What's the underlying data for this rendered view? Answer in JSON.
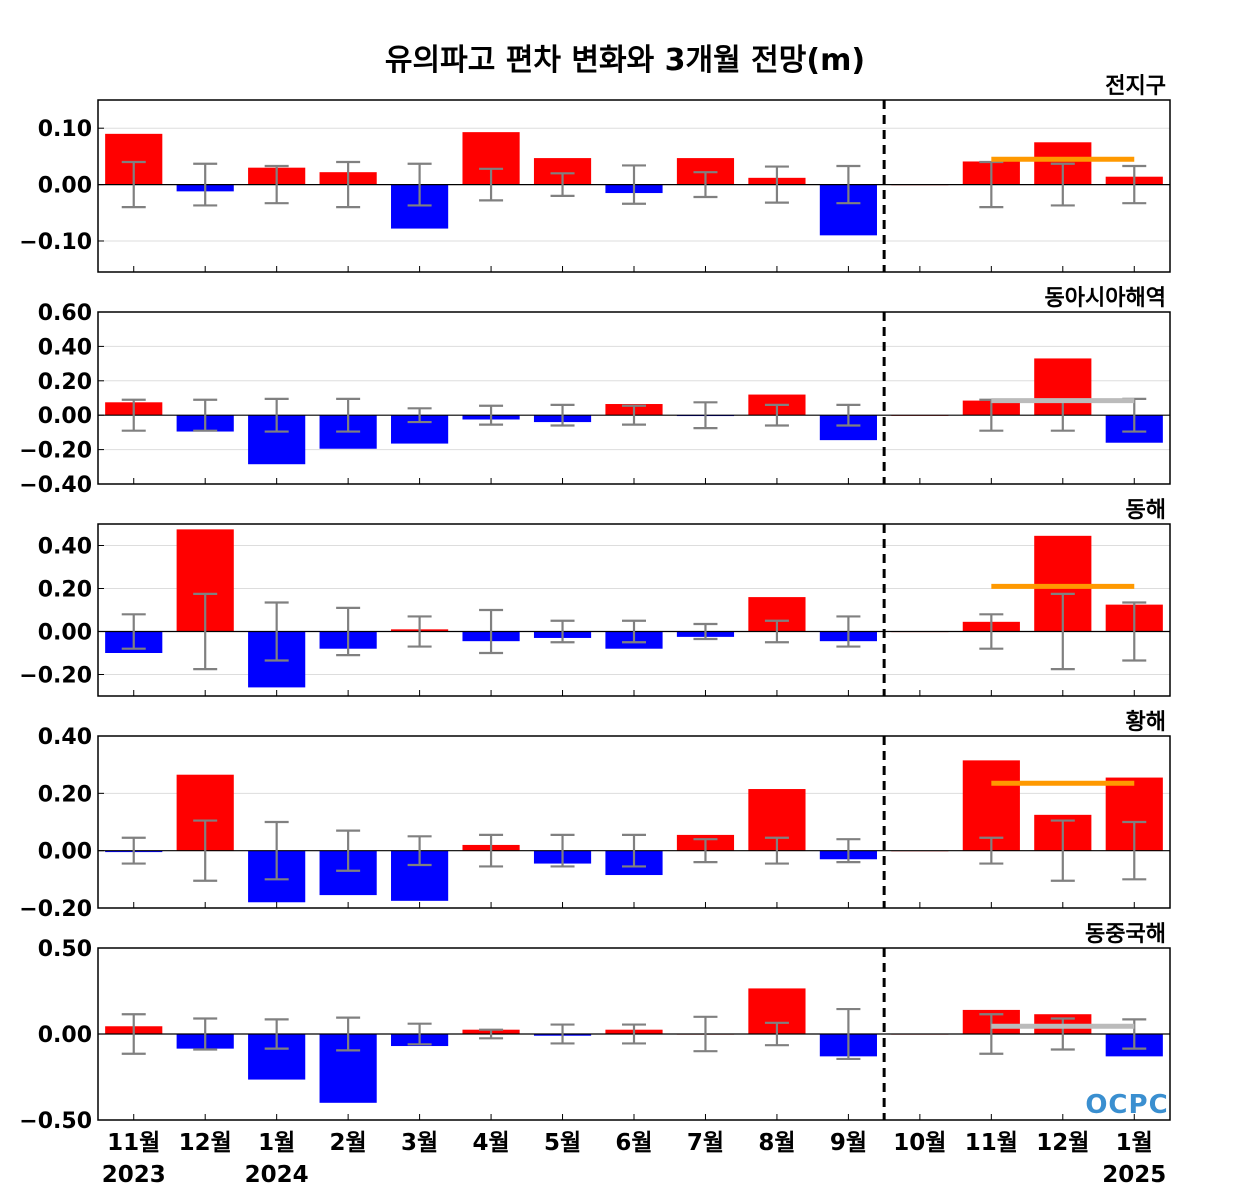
{
  "chart_data": {
    "type": "bar",
    "title": "유의파고 편차 변화와 3개월 전망(m)",
    "categories": [
      "11월",
      "12월",
      "1월",
      "2월",
      "3월",
      "4월",
      "5월",
      "6월",
      "7월",
      "8월",
      "9월",
      "10월",
      "11월",
      "12월",
      "1월"
    ],
    "year_labels": [
      {
        "index": 0,
        "label": "2023"
      },
      {
        "index": 2,
        "label": "2024"
      },
      {
        "index": 14,
        "label": "2025"
      }
    ],
    "forecast_divider_after_index": 10.5,
    "colors": {
      "positive": "#ff0000",
      "negative": "#0000ff",
      "errorbar": "#808080",
      "outlook_orange": "#ff9900",
      "outlook_gray": "#bbbbbb"
    },
    "logo": "OCPC",
    "panels": [
      {
        "name": "전지구",
        "ylim": [
          -0.155,
          0.15
        ],
        "yticks": [
          -0.1,
          0.0,
          0.1
        ],
        "ytick_labels": [
          "−0.10",
          "0.00",
          "0.10"
        ],
        "values": [
          0.09,
          -0.012,
          0.03,
          0.022,
          -0.078,
          0.093,
          0.047,
          -0.015,
          0.047,
          0.012,
          -0.09,
          0.0,
          0.041,
          0.075,
          0.014
        ],
        "error": [
          0.04,
          0.037,
          0.033,
          0.04,
          0.037,
          0.028,
          0.02,
          0.034,
          0.022,
          0.032,
          0.033,
          null,
          0.04,
          0.037,
          0.033
        ],
        "outlook": {
          "start": 12,
          "end": 14,
          "value": 0.045,
          "color": "orange"
        }
      },
      {
        "name": "동아시아해역",
        "ylim": [
          -0.4,
          0.6
        ],
        "yticks": [
          -0.4,
          -0.2,
          0.0,
          0.2,
          0.4,
          0.6
        ],
        "ytick_labels": [
          "−0.40",
          "−0.20",
          "0.00",
          "0.20",
          "0.40",
          "0.60"
        ],
        "values": [
          0.075,
          -0.095,
          -0.285,
          -0.195,
          -0.165,
          -0.025,
          -0.04,
          0.065,
          -0.005,
          0.12,
          -0.145,
          0.0,
          0.085,
          0.33,
          -0.16
        ],
        "error": [
          0.09,
          0.09,
          0.095,
          0.095,
          0.04,
          0.055,
          0.06,
          0.055,
          0.075,
          0.06,
          0.06,
          null,
          0.09,
          0.09,
          0.095
        ],
        "outlook": {
          "start": 12,
          "end": 14,
          "value": 0.085,
          "color": "gray"
        }
      },
      {
        "name": "동해",
        "ylim": [
          -0.3,
          0.5
        ],
        "yticks": [
          -0.2,
          0.0,
          0.2,
          0.4
        ],
        "ytick_labels": [
          "−0.20",
          "0.00",
          "0.20",
          "0.40"
        ],
        "values": [
          -0.1,
          0.475,
          -0.26,
          -0.08,
          0.01,
          -0.045,
          -0.03,
          -0.08,
          -0.025,
          0.16,
          -0.045,
          0.0,
          0.045,
          0.445,
          0.125
        ],
        "error": [
          0.08,
          0.175,
          0.135,
          0.11,
          0.07,
          0.1,
          0.05,
          0.05,
          0.035,
          0.05,
          0.07,
          null,
          0.08,
          0.175,
          0.135
        ],
        "outlook": {
          "start": 12,
          "end": 14,
          "value": 0.21,
          "color": "orange"
        }
      },
      {
        "name": "황해",
        "ylim": [
          -0.2,
          0.4
        ],
        "yticks": [
          -0.2,
          0.0,
          0.2,
          0.4
        ],
        "ytick_labels": [
          "−0.20",
          "0.00",
          "0.20",
          "0.40"
        ],
        "values": [
          -0.005,
          0.265,
          -0.18,
          -0.155,
          -0.175,
          0.02,
          -0.045,
          -0.085,
          0.055,
          0.215,
          -0.03,
          0.0,
          0.315,
          0.125,
          0.255
        ],
        "error": [
          0.045,
          0.105,
          0.1,
          0.07,
          0.05,
          0.055,
          0.055,
          0.055,
          0.04,
          0.045,
          0.04,
          null,
          0.045,
          0.105,
          0.1
        ],
        "outlook": {
          "start": 12,
          "end": 14,
          "value": 0.235,
          "color": "orange"
        }
      },
      {
        "name": "동중국해",
        "ylim": [
          -0.5,
          0.5
        ],
        "yticks": [
          -0.5,
          0.0,
          0.5
        ],
        "ytick_labels": [
          "−0.50",
          "0.00",
          "0.50"
        ],
        "values": [
          0.045,
          -0.085,
          -0.265,
          -0.4,
          -0.07,
          0.025,
          -0.01,
          0.025,
          0.0,
          0.265,
          -0.13,
          0.0,
          0.14,
          0.115,
          -0.13
        ],
        "error": [
          0.115,
          0.09,
          0.085,
          0.095,
          0.06,
          0.025,
          0.055,
          0.055,
          0.1,
          0.065,
          0.145,
          null,
          0.115,
          0.09,
          0.085
        ],
        "outlook": {
          "start": 12,
          "end": 14,
          "value": 0.045,
          "color": "gray"
        }
      }
    ]
  }
}
